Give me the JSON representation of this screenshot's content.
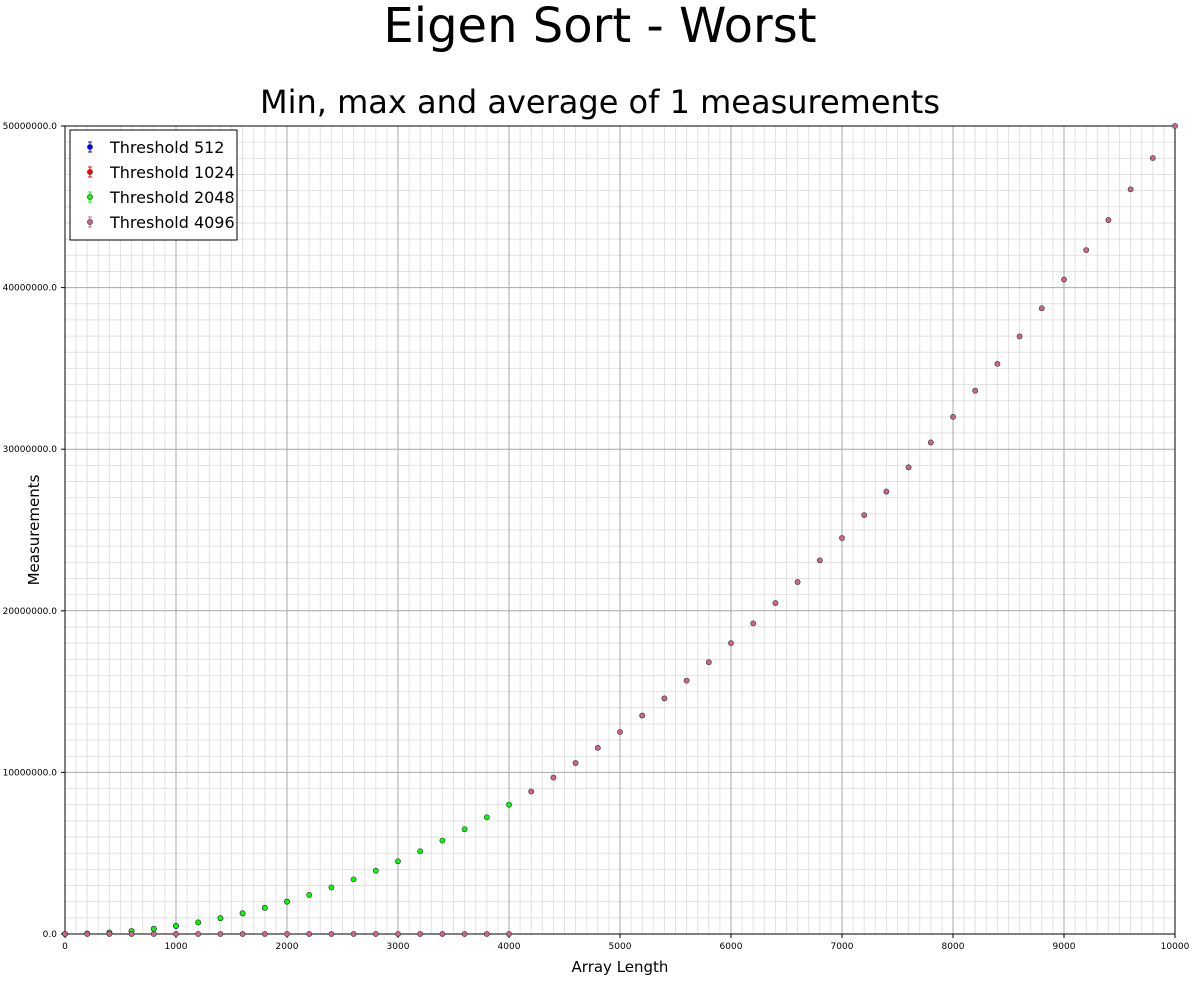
{
  "chart_data": {
    "type": "scatter",
    "title": "Eigen Sort - Worst",
    "subtitle": "Min, max and average of 1 measurements",
    "xlabel": "Array Length",
    "ylabel": "Measurements",
    "xlim": [
      0,
      10000
    ],
    "ylim": [
      0,
      50000000
    ],
    "x_ticks": [
      0,
      1000,
      2000,
      3000,
      4000,
      5000,
      6000,
      7000,
      8000,
      9000,
      10000
    ],
    "x_tick_labels": [
      "0",
      "1000",
      "2000",
      "3000",
      "4000",
      "5000",
      "6000",
      "7000",
      "8000",
      "9000",
      "10000"
    ],
    "y_ticks": [
      0,
      10000000,
      20000000,
      30000000,
      40000000,
      50000000
    ],
    "y_tick_labels": [
      "0.0",
      "10000000.0",
      "20000000.0",
      "30000000.0",
      "40000000.0",
      "50000000.0"
    ],
    "grid": true,
    "minor_grid": true,
    "legend_position": "top-left",
    "series": [
      {
        "name": "Threshold 512",
        "color": "#0000ff",
        "x": [
          0,
          200,
          400,
          600,
          800,
          1000
        ],
        "y": [
          0,
          20000,
          80000,
          180000,
          320000,
          500000
        ]
      },
      {
        "name": "Threshold 1024",
        "color": "#ff0000",
        "x": [
          0,
          200,
          400,
          600,
          800,
          1000,
          1200,
          1400,
          1600,
          1800,
          2000
        ],
        "y": [
          0,
          20000,
          80000,
          180000,
          320000,
          500000,
          720000,
          980000,
          1280000,
          1620000,
          2000000
        ]
      },
      {
        "name": "Threshold 2048",
        "color": "#00ff00",
        "x": [
          0,
          200,
          400,
          600,
          800,
          1000,
          1200,
          1400,
          1600,
          1800,
          2000,
          2200,
          2400,
          2600,
          2800,
          3000,
          3200,
          3400,
          3600,
          3800,
          4000
        ],
        "y": [
          0,
          20000,
          80000,
          180000,
          320000,
          500000,
          720000,
          980000,
          1280000,
          1620000,
          2000000,
          2420000,
          2880000,
          3380000,
          3920000,
          4500000,
          5120000,
          5780000,
          6480000,
          7220000,
          8000000
        ]
      },
      {
        "name": "Threshold 4096",
        "color": "#cc6688",
        "x": [
          0,
          200,
          400,
          600,
          800,
          1000,
          1200,
          1400,
          1600,
          1800,
          2000,
          2200,
          2400,
          2600,
          2800,
          3000,
          3200,
          3400,
          3600,
          3800,
          4000,
          4200,
          4400,
          4600,
          4800,
          5000,
          5200,
          5400,
          5600,
          5800,
          6000,
          6200,
          6400,
          6600,
          6800,
          7000,
          7200,
          7400,
          7600,
          7800,
          8000,
          8200,
          8400,
          8600,
          8800,
          9000,
          9200,
          9400,
          9600,
          9800,
          10000
        ],
        "y": [
          0,
          0,
          0,
          0,
          0,
          0,
          0,
          0,
          0,
          0,
          0,
          0,
          0,
          0,
          0,
          0,
          0,
          0,
          0,
          0,
          0,
          8820000,
          9680000,
          10580000,
          11520000,
          12500000,
          13520000,
          14580000,
          15680000,
          16820000,
          18000000,
          19220000,
          20480000,
          21780000,
          23120000,
          24500000,
          25920000,
          27380000,
          28880000,
          30420000,
          32000000,
          33620000,
          35280000,
          36980000,
          38720000,
          40500000,
          42320000,
          44180000,
          46080000,
          48020000,
          50000000
        ]
      }
    ]
  }
}
